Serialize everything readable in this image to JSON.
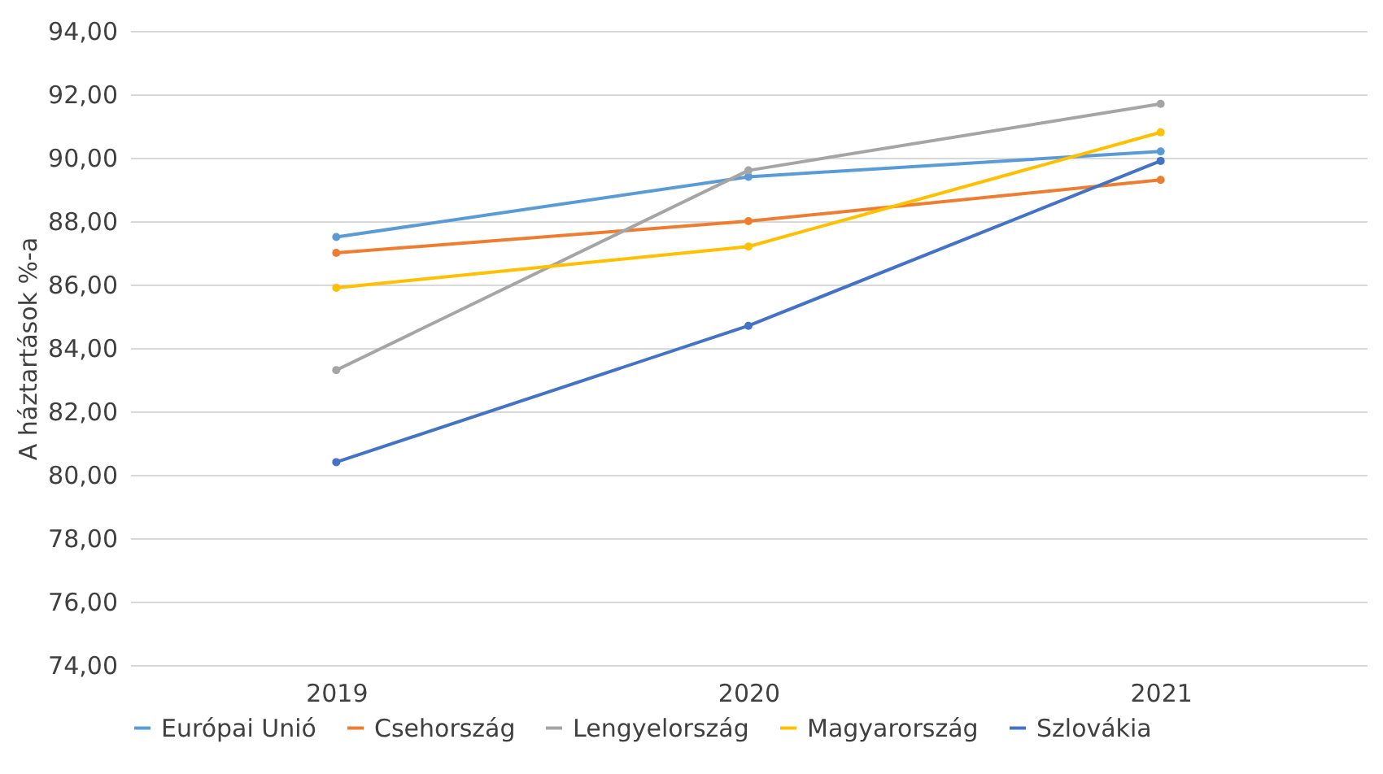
{
  "chart_data": {
    "type": "line",
    "ylabel": "A háztartások %-a",
    "categories": [
      "2019",
      "2020",
      "2021"
    ],
    "series": [
      {
        "name": "Európai Unió",
        "color": "#5b9bd5",
        "values": [
          87.5,
          89.4,
          90.2
        ]
      },
      {
        "name": "Csehország",
        "color": "#ed7d31",
        "values": [
          87.0,
          88.0,
          89.3
        ]
      },
      {
        "name": "Lengyelország",
        "color": "#a5a5a5",
        "values": [
          83.3,
          89.6,
          91.7
        ]
      },
      {
        "name": "Magyarország",
        "color": "#ffc000",
        "values": [
          85.9,
          87.2,
          90.8
        ]
      },
      {
        "name": "Szlovákia",
        "color": "#4472c4",
        "values": [
          80.4,
          84.7,
          89.9
        ]
      }
    ],
    "ylim": [
      74,
      94
    ],
    "yticks": [
      {
        "value": 74,
        "label": "74,00"
      },
      {
        "value": 76,
        "label": "76,00"
      },
      {
        "value": 78,
        "label": "78,00"
      },
      {
        "value": 80,
        "label": "80,00"
      },
      {
        "value": 82,
        "label": "82,00"
      },
      {
        "value": 84,
        "label": "84,00"
      },
      {
        "value": 86,
        "label": "86,00"
      },
      {
        "value": 88,
        "label": "88,00"
      },
      {
        "value": 90,
        "label": "90,00"
      },
      {
        "value": 92,
        "label": "92,00"
      },
      {
        "value": 94,
        "label": "94,00"
      }
    ],
    "grid": "y",
    "legend": "bottom",
    "marker": "circle",
    "line_style": "solid"
  }
}
